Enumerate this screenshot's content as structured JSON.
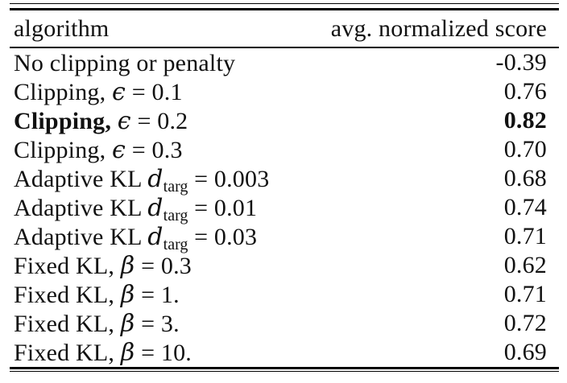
{
  "table": {
    "header": {
      "col1": "algorithm",
      "col2": "avg. normalized score"
    },
    "rows": [
      {
        "pre": "No clipping or penalty",
        "sym": "",
        "sub": "",
        "post": "",
        "score": "-0.39",
        "bold": false
      },
      {
        "pre": "Clipping, ",
        "sym": "ϵ",
        "sub": "",
        "post": " = 0.1",
        "score": "0.76",
        "bold": false
      },
      {
        "pre": "Clipping, ",
        "sym": "ϵ",
        "sub": "",
        "post": " = 0.2",
        "score": "0.82",
        "bold": true
      },
      {
        "pre": "Clipping, ",
        "sym": "ϵ",
        "sub": "",
        "post": " = 0.3",
        "score": "0.70",
        "bold": false
      },
      {
        "pre": "Adaptive KL ",
        "sym": "d",
        "sub": "targ",
        "post": " = 0.003",
        "score": "0.68",
        "bold": false
      },
      {
        "pre": "Adaptive KL ",
        "sym": "d",
        "sub": "targ",
        "post": " = 0.01",
        "score": "0.74",
        "bold": false
      },
      {
        "pre": "Adaptive KL ",
        "sym": "d",
        "sub": "targ",
        "post": " = 0.03",
        "score": "0.71",
        "bold": false
      },
      {
        "pre": "Fixed KL, ",
        "sym": "β",
        "sub": "",
        "post": " = 0.3",
        "score": "0.62",
        "bold": false
      },
      {
        "pre": "Fixed KL, ",
        "sym": "β",
        "sub": "",
        "post": " = 1.",
        "score": "0.71",
        "bold": false
      },
      {
        "pre": "Fixed KL, ",
        "sym": "β",
        "sub": "",
        "post": " = 3.",
        "score": "0.72",
        "bold": false
      },
      {
        "pre": "Fixed KL, ",
        "sym": "β",
        "sub": "",
        "post": " = 10.",
        "score": "0.69",
        "bold": false
      }
    ],
    "colors": {
      "text": "#111111",
      "rule": "#000000",
      "background": "#ffffff"
    }
  }
}
